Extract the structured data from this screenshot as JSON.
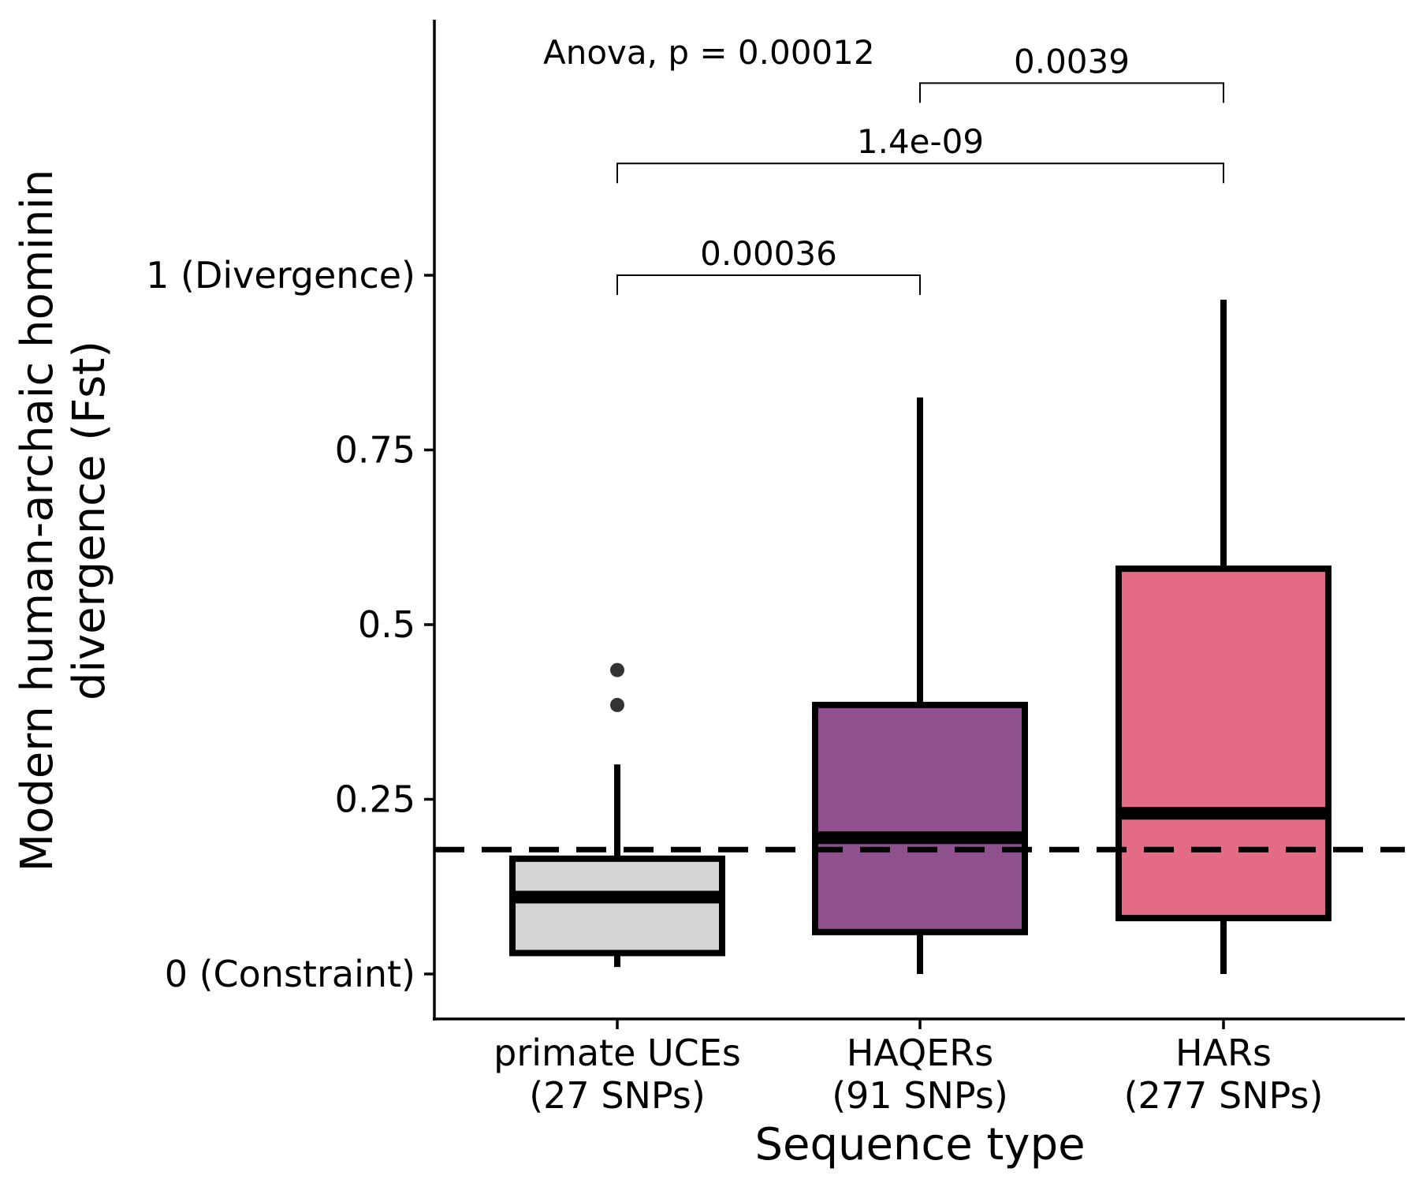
{
  "chart_data": {
    "type": "box",
    "annotation": "Anova, p = 0.00012",
    "xlabel": "Sequence type",
    "ylabel_lines": [
      "Modern human-archaic hominin",
      "divergence (Fst)"
    ],
    "ylim": [
      -0.065,
      1.36
    ],
    "y_ticks": [
      {
        "value": 0,
        "label": "0 (Constraint)"
      },
      {
        "value": 0.25,
        "label": "0.25"
      },
      {
        "value": 0.5,
        "label": "0.5"
      },
      {
        "value": 0.75,
        "label": "0.75"
      },
      {
        "value": 1,
        "label": "1 (Divergence)"
      }
    ],
    "reference_line": 0.178,
    "categories": [
      {
        "line1": "primate UCEs",
        "line2": "(27 SNPs)"
      },
      {
        "line1": "HAQERs",
        "line2": "(91 SNPs)"
      },
      {
        "line1": "HARs",
        "line2": "(277 SNPs)"
      }
    ],
    "boxes": [
      {
        "whisker_low": 0.01,
        "q1": 0.03,
        "median": 0.11,
        "q3": 0.165,
        "whisker_high": 0.3,
        "outliers": [
          0.385,
          0.435
        ],
        "color": "#d4d4d4"
      },
      {
        "whisker_low": 0.0,
        "q1": 0.06,
        "median": 0.195,
        "q3": 0.385,
        "whisker_high": 0.825,
        "outliers": [],
        "color": "#8e518d"
      },
      {
        "whisker_low": 0.0,
        "q1": 0.08,
        "median": 0.23,
        "q3": 0.58,
        "whisker_high": 0.965,
        "outliers": [],
        "color": "#e46b85"
      }
    ],
    "comparisons": [
      {
        "from": 0,
        "to": 1,
        "y": 1.0,
        "label": "0.00036"
      },
      {
        "from": 0,
        "to": 2,
        "y": 1.16,
        "label": "1.4e-09"
      },
      {
        "from": 1,
        "to": 2,
        "y": 1.275,
        "label": "0.0039"
      }
    ]
  }
}
